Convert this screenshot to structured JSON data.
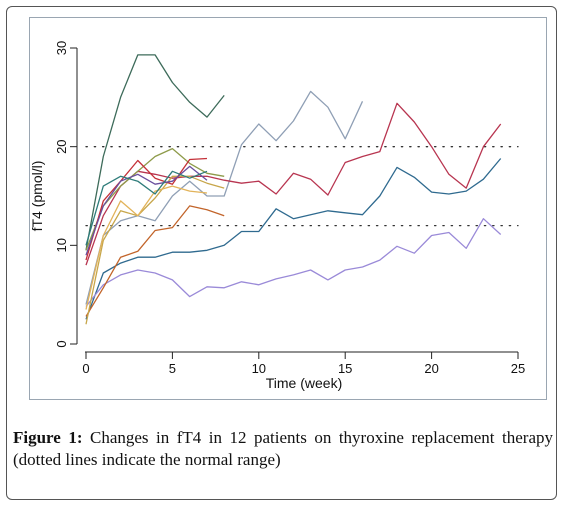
{
  "caption": {
    "label": "Figure 1:",
    "text": " Changes in fT4 in 12 patients on thyroxine replacement therapy (dotted lines indicate the normal range)"
  },
  "chart_data": {
    "type": "line",
    "xlabel": "Time (week)",
    "ylabel": "fT4 (pmol/l)",
    "xlim": [
      0,
      25
    ],
    "ylim": [
      0,
      30
    ],
    "xticks": [
      0,
      5,
      10,
      15,
      20,
      25
    ],
    "yticks": [
      0,
      10,
      20,
      30
    ],
    "reference_lines": [
      12,
      20
    ],
    "grid": false,
    "series": [
      {
        "color": "#3d6b5a",
        "x": [
          0,
          1,
          2,
          3,
          4,
          5,
          6,
          7,
          8
        ],
        "y": [
          9.5,
          19,
          25,
          29.3,
          29.3,
          26.5,
          24.5,
          23,
          25.2
        ]
      },
      {
        "color": "#8f9fb5",
        "x": [
          0,
          1,
          2,
          3,
          4,
          5,
          6,
          7,
          8,
          9,
          10,
          11,
          12,
          13,
          14,
          15,
          16
        ],
        "y": [
          4,
          11,
          12.5,
          13,
          12.5,
          15,
          16.5,
          15,
          15,
          20.2,
          22.3,
          20.6,
          22.6,
          25.6,
          24,
          20.8,
          24.6
        ]
      },
      {
        "color": "#b83550",
        "x": [
          0,
          1,
          2,
          3,
          4,
          5,
          6,
          7,
          8,
          9,
          10,
          11,
          12,
          13,
          14,
          15,
          16,
          17,
          18,
          19,
          20,
          21,
          22,
          23,
          24
        ],
        "y": [
          8,
          13,
          16,
          17.5,
          17.2,
          16.8,
          17,
          17,
          16.6,
          16.3,
          16.5,
          15.2,
          17.3,
          16.7,
          15.1,
          18.4,
          19,
          19.5,
          24.4,
          22.5,
          20,
          17.2,
          15.8,
          20,
          22.3
        ]
      },
      {
        "color": "#2f6a8f",
        "x": [
          0,
          1,
          2,
          3,
          4,
          5,
          6,
          7,
          8,
          9,
          10,
          11,
          12,
          13,
          14,
          15,
          16,
          17,
          18,
          19,
          20,
          21,
          22,
          23,
          24
        ],
        "y": [
          2.5,
          7.2,
          8.2,
          8.8,
          8.8,
          9.3,
          9.3,
          9.5,
          10,
          11.4,
          11.4,
          13.7,
          12.7,
          13.1,
          13.5,
          13.3,
          13.1,
          15,
          17.9,
          16.9,
          15.4,
          15.2,
          15.5,
          16.7,
          18.8
        ]
      },
      {
        "color": "#9a8ad8",
        "x": [
          0,
          1,
          2,
          3,
          4,
          5,
          6,
          7,
          8,
          9,
          10,
          11,
          12,
          13,
          14,
          15,
          16,
          17,
          18,
          19,
          20,
          21,
          22,
          23,
          24
        ],
        "y": [
          3.8,
          6,
          7,
          7.5,
          7.2,
          6.5,
          4.8,
          5.8,
          5.7,
          6.3,
          6,
          6.6,
          7,
          7.5,
          6.5,
          7.5,
          7.8,
          8.5,
          9.9,
          9.2,
          11,
          11.3,
          9.7,
          12.7,
          11.1
        ]
      },
      {
        "color": "#c2642a",
        "x": [
          0,
          1,
          2,
          3,
          4,
          5,
          6,
          7,
          8
        ],
        "y": [
          2.8,
          5.7,
          8.8,
          9.4,
          11.5,
          11.8,
          14,
          13.6,
          13
        ]
      },
      {
        "color": "#c7a64a",
        "x": [
          0,
          1,
          2,
          3,
          4,
          5,
          6,
          7,
          8
        ],
        "y": [
          2,
          10.5,
          13.5,
          13,
          14.8,
          17,
          17,
          16.3,
          15.8
        ]
      },
      {
        "color": "#8e9b4a",
        "x": [
          0,
          1,
          2,
          3,
          4,
          5,
          6,
          7,
          8
        ],
        "y": [
          9.5,
          14,
          16,
          17.5,
          19,
          19.8,
          18.3,
          17.3,
          17
        ]
      },
      {
        "color": "#c43038",
        "x": [
          0,
          1,
          2,
          3,
          4,
          5,
          6,
          7
        ],
        "y": [
          8.5,
          14.5,
          16.5,
          18.6,
          16.8,
          16.2,
          18.7,
          18.8
        ]
      },
      {
        "color": "#6a4f9e",
        "x": [
          0,
          1,
          2,
          3,
          4,
          5,
          6,
          7
        ],
        "y": [
          9,
          14,
          16.5,
          17.2,
          16.2,
          16.5,
          18,
          16.6
        ]
      },
      {
        "color": "#e2b35a",
        "x": [
          0,
          1,
          2,
          3,
          4,
          5,
          6,
          7
        ],
        "y": [
          3.5,
          11,
          14.5,
          13,
          15.5,
          16,
          15.5,
          15.3
        ]
      },
      {
        "color": "#2e7c7a",
        "x": [
          0,
          1,
          2,
          3,
          4,
          5,
          6,
          7
        ],
        "y": [
          10,
          16,
          17,
          16.5,
          15.2,
          17.5,
          16.8,
          17.5
        ]
      }
    ]
  }
}
